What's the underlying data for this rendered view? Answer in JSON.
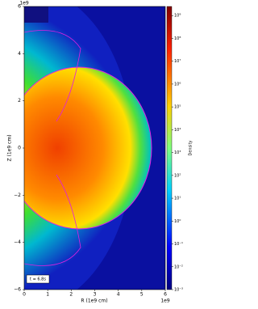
{
  "chart_data": {
    "type": "heatmap",
    "xlabel": "R (1e9 cm)",
    "ylabel": "Z (1e9 cm)",
    "x_offset_label": "1e9",
    "y_offset_label": "1e9",
    "annotation": "t = 6.8s",
    "xlim": [
      0,
      6
    ],
    "xticks": [
      0,
      1,
      2,
      3,
      4,
      5,
      6
    ],
    "ylim": [
      -6,
      6
    ],
    "yticks": [
      {
        "value": -6,
        "label": "−6"
      },
      {
        "value": -4,
        "label": "−4"
      },
      {
        "value": -2,
        "label": "−2"
      },
      0,
      2,
      4,
      6
    ],
    "colorbar": {
      "label": "Density",
      "scale": "log",
      "lim": [
        0.001,
        2500000000
      ],
      "ticks": [
        {
          "value": 0.001,
          "label": "10⁻³"
        },
        {
          "value": 0.01,
          "label": "10⁻²"
        },
        {
          "value": 0.1,
          "label": "10⁻¹"
        },
        {
          "value": 1,
          "label": "10⁰"
        },
        {
          "value": 10,
          "label": "10¹"
        },
        {
          "value": 100,
          "label": "10²"
        },
        {
          "value": 1000,
          "label": "10³"
        },
        {
          "value": 10000,
          "label": "10⁴"
        },
        {
          "value": 100000,
          "label": "10⁵"
        },
        {
          "value": 1000000,
          "label": "10⁶"
        },
        {
          "value": 10000000,
          "label": "10⁷"
        },
        {
          "value": 100000000,
          "label": "10⁸"
        },
        {
          "value": 1000000000,
          "label": "10⁹"
        }
      ]
    }
  }
}
